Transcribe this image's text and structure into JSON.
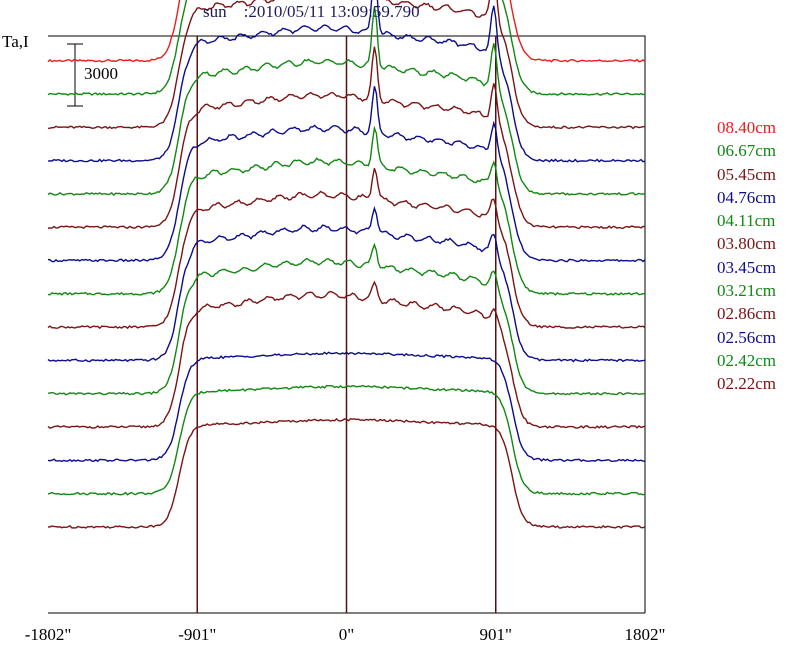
{
  "chart_data": {
    "type": "line",
    "title": "sun    :2010/05/11 13:09:59.790",
    "ylabel": "Ta,I",
    "scale_bar": {
      "value": 3000,
      "label": "3000"
    },
    "x_ticks": [
      {
        "value": -1802,
        "label": "-1802\""
      },
      {
        "value": -901,
        "label": "-901\""
      },
      {
        "value": 0,
        "label": "0\""
      },
      {
        "value": 901,
        "label": "901\""
      },
      {
        "value": 1802,
        "label": "1802\""
      }
    ],
    "xlim": [
      -1802,
      1802
    ],
    "vertical_lines": [
      -901,
      0,
      901
    ],
    "series": [
      {
        "name": "08.40cm",
        "color": "#ee1c1c",
        "offset": 11,
        "kind": "full"
      },
      {
        "name": "06.67cm",
        "color": "#118811",
        "offset": 10,
        "kind": "full"
      },
      {
        "name": "05.45cm",
        "color": "#7a1414",
        "offset": 9,
        "kind": "full"
      },
      {
        "name": "04.76cm",
        "color": "#0c0c8c",
        "offset": 8,
        "kind": "full"
      },
      {
        "name": "04.11cm",
        "color": "#118811",
        "offset": 7,
        "kind": "full"
      },
      {
        "name": "03.80cm",
        "color": "#7a1414",
        "offset": 6,
        "kind": "full"
      },
      {
        "name": "03.45cm",
        "color": "#0c0c8c",
        "offset": 5,
        "kind": "full"
      },
      {
        "name": "03.21cm",
        "color": "#118811",
        "offset": 4,
        "kind": "full"
      },
      {
        "name": "02.86cm",
        "color": "#7a1414",
        "offset": 3,
        "kind": "full"
      },
      {
        "name": "02.56cm",
        "color": "#0c0c8c",
        "offset": 2,
        "kind": "full"
      },
      {
        "name": "02.42cm",
        "color": "#118811",
        "offset": 1,
        "kind": "full"
      },
      {
        "name": "02.22cm",
        "color": "#7a1414",
        "offset": 0,
        "kind": "full"
      },
      {
        "color": "#0c0c8c",
        "offset": -1,
        "kind": "low"
      },
      {
        "color": "#118811",
        "offset": -2,
        "kind": "low"
      },
      {
        "color": "#7a1414",
        "offset": -3,
        "kind": "low"
      }
    ]
  }
}
